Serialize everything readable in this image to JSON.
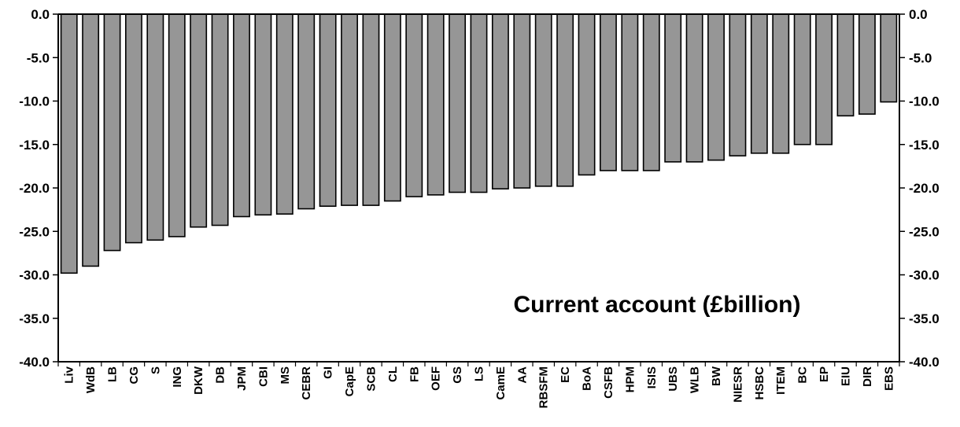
{
  "chart_data": {
    "type": "bar",
    "title": "Current account (£billion)",
    "xlabel": "",
    "ylabel": "",
    "ylim": [
      -40,
      0
    ],
    "yticks": [
      "0.0",
      "-5.0",
      "-10.0",
      "-15.0",
      "-20.0",
      "-25.0",
      "-30.0",
      "-35.0",
      "-40.0"
    ],
    "grid": false,
    "categories": [
      "Liv",
      "WdB",
      "LB",
      "CG",
      "S",
      "ING",
      "DKW",
      "DB",
      "JPM",
      "CBI",
      "MS",
      "CEBR",
      "GI",
      "CapE",
      "SCB",
      "CL",
      "FB",
      "OEF",
      "GS",
      "LS",
      "CamE",
      "AA",
      "RBSFM",
      "EC",
      "BoA",
      "CSFB",
      "HPM",
      "ISIS",
      "UBS",
      "WLB",
      "BW",
      "NIESR",
      "HSBC",
      "ITEM",
      "BC",
      "EP",
      "EIU",
      "DIR",
      "EBS"
    ],
    "values": [
      -29.8,
      -29.0,
      -27.2,
      -26.3,
      -26.0,
      -25.6,
      -24.5,
      -24.3,
      -23.3,
      -23.1,
      -23.0,
      -22.4,
      -22.1,
      -22.0,
      -22.0,
      -21.5,
      -21.0,
      -20.8,
      -20.5,
      -20.5,
      -20.1,
      -20.0,
      -19.8,
      -19.8,
      -18.5,
      -18.0,
      -18.0,
      -18.0,
      -17.0,
      -17.0,
      -16.8,
      -16.3,
      -16.0,
      -16.0,
      -15.0,
      -15.0,
      -11.7,
      -11.5,
      -10.1
    ],
    "colors": {
      "bar_fill": "#969696",
      "bar_stroke": "#000000",
      "axis": "#000000",
      "background": "#ffffff"
    }
  }
}
